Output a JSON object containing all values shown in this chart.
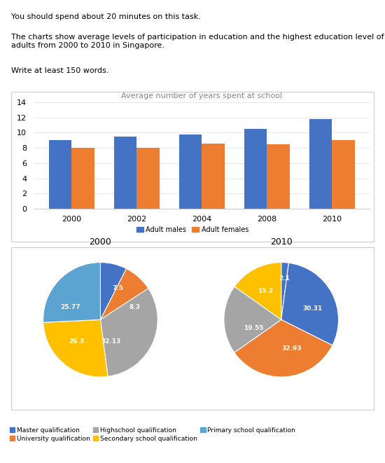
{
  "text_line1": "You should spend about 20 minutes on this task.",
  "text_line2": "The charts show average levels of participation in education and the highest education level of adults from 2000 to 2010 in Singapore.",
  "text_line3": "Write at least 150 words.",
  "bar_title": "Average number of years spent at school",
  "bar_years": [
    2000,
    2002,
    2004,
    2008,
    2010
  ],
  "bar_males": [
    9.0,
    9.5,
    9.8,
    10.5,
    11.8
  ],
  "bar_females": [
    8.0,
    8.0,
    8.6,
    8.5,
    9.0
  ],
  "bar_male_color": "#4472C4",
  "bar_female_color": "#ED7D31",
  "bar_legend_male": "Adult males",
  "bar_legend_female": "Adult females",
  "bar_ylim": [
    0,
    14
  ],
  "bar_yticks": [
    0,
    2,
    4,
    6,
    8,
    10,
    12,
    14
  ],
  "pie_title_2000": "2000",
  "pie_title_2010": "2010",
  "pie_2000_values": [
    7.5,
    8.3,
    32.13,
    26.3,
    25.77
  ],
  "pie_2000_labels": [
    "7.5",
    "8.3",
    "32.13",
    "26.3",
    "25.77"
  ],
  "pie_2010_values": [
    2.1,
    30.31,
    32.93,
    19.55,
    15.2
  ],
  "pie_2010_labels": [
    "2.1",
    "30.31",
    "32.93",
    "19.55",
    "15.2"
  ],
  "pie_2000_colors": [
    "#4472C4",
    "#ED7D31",
    "#A5A5A5",
    "#FFC000",
    "#5BA3D0"
  ],
  "pie_2010_colors": [
    "#4472C4",
    "#4472C4",
    "#ED7D31",
    "#A5A5A5",
    "#FFC000"
  ],
  "legend_labels": [
    "Master qualification",
    "University qualification",
    "Highschool qualification",
    "Secondary school qualification",
    "Primary school qualification"
  ],
  "legend_colors": [
    "#4472C4",
    "#ED7D31",
    "#A5A5A5",
    "#FFC000",
    "#5BA3D0"
  ]
}
